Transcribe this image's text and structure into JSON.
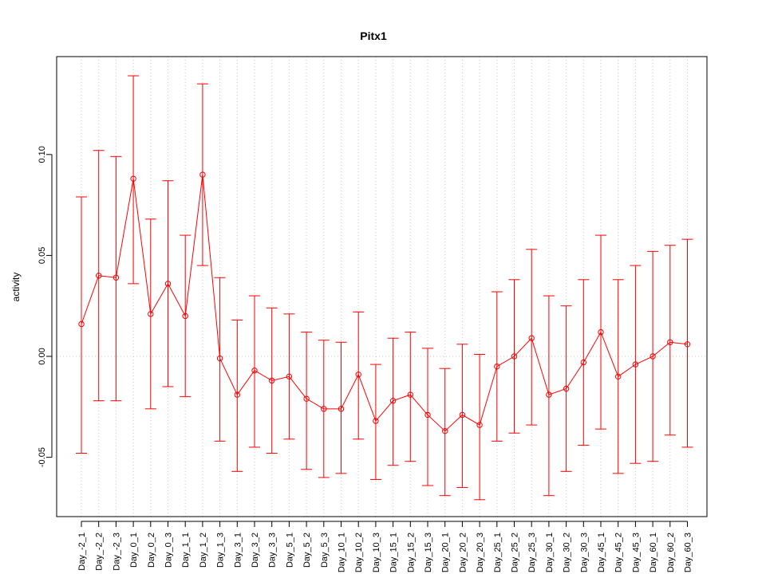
{
  "chart_data": {
    "type": "line",
    "title": "Pitx1",
    "xlabel": "",
    "ylabel": "activity",
    "ylim": [
      -0.08,
      0.15
    ],
    "yticks": [
      -0.05,
      0.0,
      0.05,
      0.1
    ],
    "ytick_labels": [
      "-0.05",
      "0.00",
      "0.05",
      "0.10"
    ],
    "grid": true,
    "reference_line_y": 0.0,
    "line_color": "#ff0000",
    "categories": [
      "Day_-2_1",
      "Day_-2_2",
      "Day_-2_3",
      "Day_0_1",
      "Day_0_2",
      "Day_0_3",
      "Day_1_1",
      "Day_1_2",
      "Day_1_3",
      "Day_3_1",
      "Day_3_2",
      "Day_3_3",
      "Day_5_1",
      "Day_5_2",
      "Day_5_3",
      "Day_10_1",
      "Day_10_2",
      "Day_10_3",
      "Day_15_1",
      "Day_15_2",
      "Day_15_3",
      "Day_20_1",
      "Day_20_2",
      "Day_20_3",
      "Day_25_1",
      "Day_25_2",
      "Day_25_3",
      "Day_30_1",
      "Day_30_2",
      "Day_30_3",
      "Day_45_1",
      "Day_45_2",
      "Day_45_3",
      "Day_60_1",
      "Day_60_2",
      "Day_60_3"
    ],
    "values": [
      0.016,
      0.04,
      0.039,
      0.088,
      0.021,
      0.036,
      0.02,
      0.09,
      -0.001,
      -0.019,
      -0.007,
      -0.012,
      -0.01,
      -0.021,
      -0.026,
      -0.026,
      -0.009,
      -0.032,
      -0.022,
      -0.019,
      -0.029,
      -0.037,
      -0.029,
      -0.034,
      -0.005,
      0.0,
      0.009,
      -0.019,
      -0.016,
      -0.003,
      0.012,
      -0.01,
      -0.004,
      0.0,
      0.007,
      0.006
    ],
    "upper": [
      0.079,
      0.102,
      0.099,
      0.139,
      0.068,
      0.087,
      0.06,
      0.135,
      0.039,
      0.018,
      0.03,
      0.024,
      0.021,
      0.012,
      0.008,
      0.007,
      0.022,
      -0.004,
      0.009,
      0.012,
      0.004,
      -0.006,
      0.006,
      0.001,
      0.032,
      0.038,
      0.053,
      0.03,
      0.025,
      0.038,
      0.06,
      0.038,
      0.045,
      0.052,
      0.055,
      0.058
    ],
    "lower": [
      -0.048,
      -0.022,
      -0.022,
      0.036,
      -0.026,
      -0.015,
      -0.02,
      0.045,
      -0.042,
      -0.057,
      -0.045,
      -0.048,
      -0.041,
      -0.056,
      -0.06,
      -0.058,
      -0.041,
      -0.061,
      -0.054,
      -0.052,
      -0.064,
      -0.069,
      -0.065,
      -0.071,
      -0.042,
      -0.038,
      -0.034,
      -0.069,
      -0.057,
      -0.044,
      -0.036,
      -0.058,
      -0.053,
      -0.052,
      -0.039,
      -0.045
    ]
  }
}
